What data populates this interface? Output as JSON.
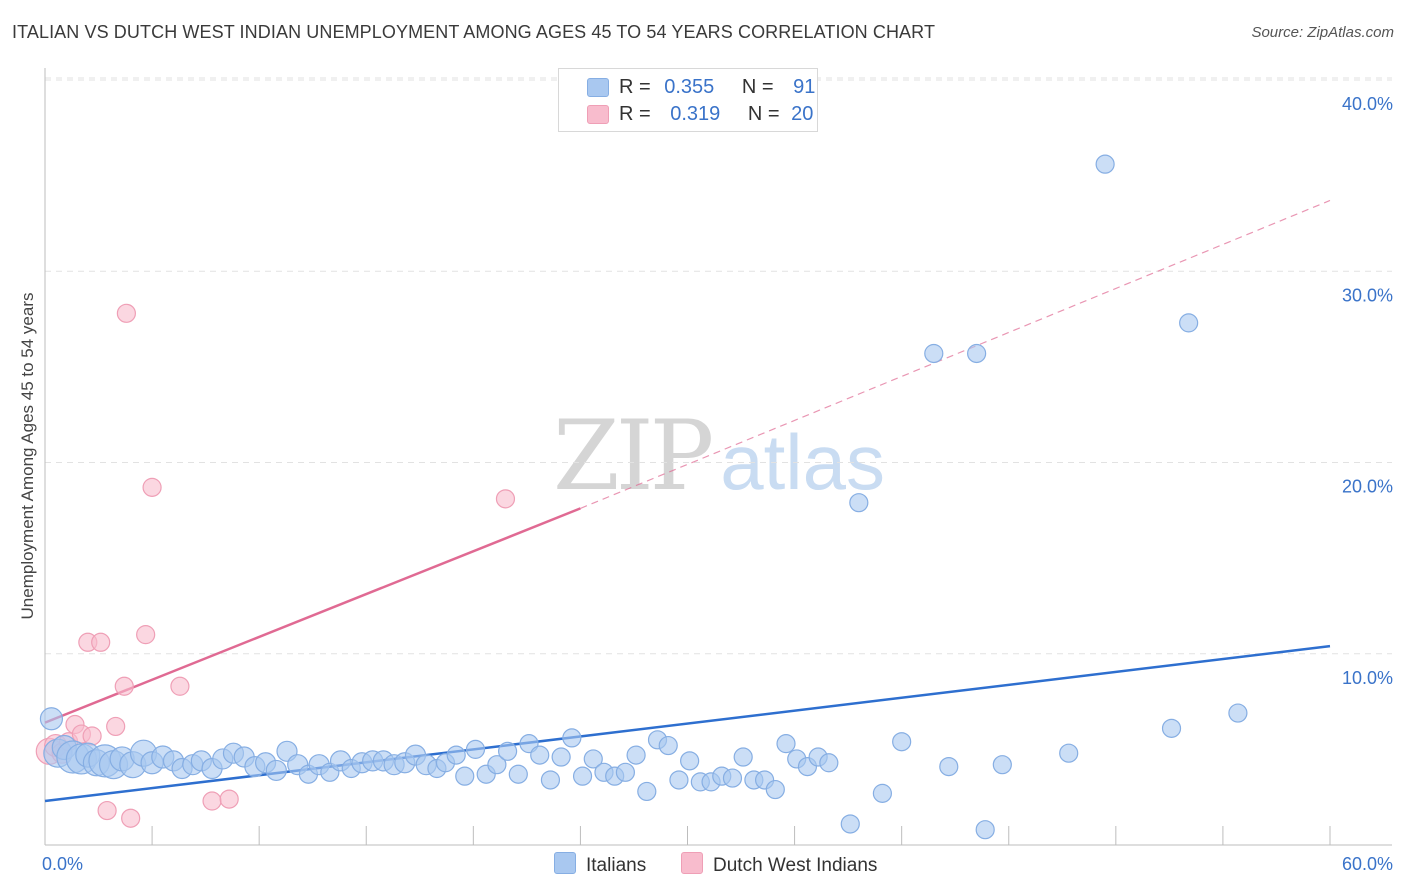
{
  "header": {
    "title": "ITALIAN VS DUTCH WEST INDIAN UNEMPLOYMENT AMONG AGES 45 TO 54 YEARS CORRELATION CHART",
    "source": "Source: ZipAtlas.com"
  },
  "watermark": {
    "zip": "ZIP",
    "atlas": "atlas"
  },
  "legend_top": {
    "rows": [
      {
        "r_label": "R =",
        "r_value": "0.355",
        "n_label": "N =",
        "n_value": "91"
      },
      {
        "r_label": "R =",
        "r_value": "0.319",
        "n_label": "N =",
        "n_value": "20"
      }
    ]
  },
  "legend_bottom": {
    "items": [
      "Italians",
      "Dutch West Indians"
    ]
  },
  "colors": {
    "blue_fill": "#a9c8f0",
    "blue_stroke": "#86aee3",
    "blue_line": "#2e6fcf",
    "pink_fill": "#f8bccd",
    "pink_stroke": "#ef9fb6",
    "pink_line": "#e06a93",
    "tick_text": "#3a73c9",
    "grid": "#e2e2e2"
  },
  "chart_data": {
    "type": "scatter",
    "title": "ITALIAN VS DUTCH WEST INDIAN UNEMPLOYMENT AMONG AGES 45 TO 54 YEARS CORRELATION CHART",
    "xlabel": "",
    "ylabel": "Unemployment Among Ages 45 to 54 years",
    "xlim": [
      0,
      60
    ],
    "ylim": [
      0,
      42
    ],
    "x_tick_labels": [
      "0.0%",
      "60.0%"
    ],
    "y_ticks": [
      10,
      20,
      30,
      40
    ],
    "y_tick_labels": [
      "10.0%",
      "20.0%",
      "30.0%",
      "40.0%"
    ],
    "grid": true,
    "legend_placement": "top-center",
    "series": [
      {
        "name": "Italians",
        "R": 0.355,
        "N": 91,
        "trend": {
          "x": [
            0,
            60
          ],
          "y": [
            2.3,
            10.4
          ],
          "style": "solid"
        },
        "points": [
          [
            0.3,
            6.6,
            11
          ],
          [
            0.6,
            4.8,
            14
          ],
          [
            0.9,
            5.1,
            12
          ],
          [
            1.3,
            4.6,
            16
          ],
          [
            1.7,
            4.5,
            15
          ],
          [
            2.0,
            4.7,
            12
          ],
          [
            2.4,
            4.3,
            13
          ],
          [
            2.8,
            4.4,
            16
          ],
          [
            3.2,
            4.2,
            14
          ],
          [
            3.6,
            4.5,
            12
          ],
          [
            4.1,
            4.2,
            13
          ],
          [
            4.6,
            4.8,
            13
          ],
          [
            5.0,
            4.3,
            11
          ],
          [
            5.5,
            4.6,
            11
          ],
          [
            6.0,
            4.4,
            10
          ],
          [
            6.4,
            4.0,
            10
          ],
          [
            6.9,
            4.2,
            10
          ],
          [
            7.3,
            4.4,
            10
          ],
          [
            7.8,
            4.0,
            10
          ],
          [
            8.3,
            4.5,
            10
          ],
          [
            8.8,
            4.8,
            10
          ],
          [
            9.3,
            4.6,
            10
          ],
          [
            9.8,
            4.1,
            10
          ],
          [
            10.3,
            4.3,
            10
          ],
          [
            10.8,
            3.9,
            10
          ],
          [
            11.3,
            4.9,
            10
          ],
          [
            11.8,
            4.2,
            10
          ],
          [
            12.3,
            3.7,
            9
          ],
          [
            12.8,
            4.2,
            10
          ],
          [
            13.3,
            3.8,
            9
          ],
          [
            13.8,
            4.4,
            10
          ],
          [
            14.3,
            4.0,
            9
          ],
          [
            14.8,
            4.3,
            10
          ],
          [
            15.3,
            4.4,
            10
          ],
          [
            15.8,
            4.4,
            10
          ],
          [
            16.3,
            4.2,
            10
          ],
          [
            16.8,
            4.3,
            10
          ],
          [
            17.3,
            4.7,
            10
          ],
          [
            17.8,
            4.2,
            10
          ],
          [
            18.3,
            4.0,
            9
          ],
          [
            18.7,
            4.3,
            9
          ],
          [
            19.2,
            4.7,
            9
          ],
          [
            19.6,
            3.6,
            9
          ],
          [
            20.1,
            5.0,
            9
          ],
          [
            20.6,
            3.7,
            9
          ],
          [
            21.1,
            4.2,
            9
          ],
          [
            21.6,
            4.9,
            9
          ],
          [
            22.1,
            3.7,
            9
          ],
          [
            22.6,
            5.3,
            9
          ],
          [
            23.1,
            4.7,
            9
          ],
          [
            23.6,
            3.4,
            9
          ],
          [
            24.1,
            4.6,
            9
          ],
          [
            24.6,
            5.6,
            9
          ],
          [
            25.1,
            3.6,
            9
          ],
          [
            25.6,
            4.5,
            9
          ],
          [
            26.1,
            3.8,
            9
          ],
          [
            26.6,
            3.6,
            9
          ],
          [
            27.1,
            3.8,
            9
          ],
          [
            27.6,
            4.7,
            9
          ],
          [
            28.1,
            2.8,
            9
          ],
          [
            28.6,
            5.5,
            9
          ],
          [
            29.1,
            5.2,
            9
          ],
          [
            29.6,
            3.4,
            9
          ],
          [
            30.1,
            4.4,
            9
          ],
          [
            30.6,
            3.3,
            9
          ],
          [
            31.1,
            3.3,
            9
          ],
          [
            31.6,
            3.6,
            9
          ],
          [
            32.1,
            3.5,
            9
          ],
          [
            32.6,
            4.6,
            9
          ],
          [
            33.1,
            3.4,
            9
          ],
          [
            33.6,
            3.4,
            9
          ],
          [
            34.1,
            2.9,
            9
          ],
          [
            34.6,
            5.3,
            9
          ],
          [
            35.1,
            4.5,
            9
          ],
          [
            35.6,
            4.1,
            9
          ],
          [
            36.1,
            4.6,
            9
          ],
          [
            36.6,
            4.3,
            9
          ],
          [
            37.6,
            1.1,
            9
          ],
          [
            38.0,
            17.9,
            9
          ],
          [
            39.1,
            2.7,
            9
          ],
          [
            40.0,
            5.4,
            9
          ],
          [
            41.5,
            25.7,
            9
          ],
          [
            42.2,
            4.1,
            9
          ],
          [
            43.5,
            25.7,
            9
          ],
          [
            43.9,
            0.8,
            9
          ],
          [
            44.7,
            4.2,
            9
          ],
          [
            47.8,
            4.8,
            9
          ],
          [
            49.5,
            35.6,
            9
          ],
          [
            52.6,
            6.1,
            9
          ],
          [
            53.4,
            27.3,
            9
          ],
          [
            55.7,
            6.9,
            9
          ]
        ]
      },
      {
        "name": "Dutch West Indians",
        "R": 0.319,
        "N": 20,
        "trend": {
          "x": [
            0,
            25
          ],
          "y": [
            6.4,
            17.6
          ],
          "dashed_to": [
            60,
            33.7
          ]
        },
        "points": [
          [
            0.2,
            4.9,
            13
          ],
          [
            0.5,
            5.2,
            11
          ],
          [
            0.8,
            4.8,
            10
          ],
          [
            1.1,
            5.4,
            9
          ],
          [
            1.4,
            6.3,
            9
          ],
          [
            1.7,
            5.8,
            9
          ],
          [
            2.0,
            10.6,
            9
          ],
          [
            2.2,
            5.7,
            9
          ],
          [
            2.6,
            10.6,
            9
          ],
          [
            2.9,
            1.8,
            9
          ],
          [
            3.3,
            6.2,
            9
          ],
          [
            3.7,
            8.3,
            9
          ],
          [
            3.8,
            27.8,
            9
          ],
          [
            4.0,
            1.4,
            9
          ],
          [
            4.7,
            11.0,
            9
          ],
          [
            5.0,
            18.7,
            9
          ],
          [
            6.3,
            8.3,
            9
          ],
          [
            7.8,
            2.3,
            9
          ],
          [
            8.6,
            2.4,
            9
          ],
          [
            21.5,
            18.1,
            9
          ]
        ]
      }
    ]
  }
}
